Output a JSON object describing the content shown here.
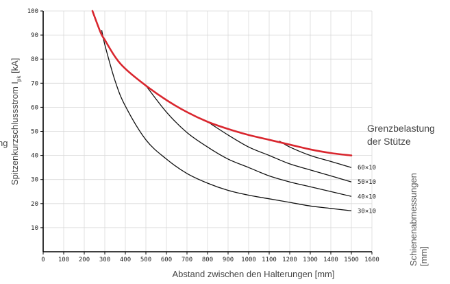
{
  "chart_data": {
    "type": "line",
    "xlabel": "Abstand zwischen den Halterungen [mm]",
    "ylabel_main": "Spitzenkurzschlussstrom I",
    "ylabel_sub": "pk",
    "ylabel_unit": " [kA]",
    "left_cut_label": "ng",
    "limit_label_lines": [
      "Grenzbelastung",
      "der Stütze"
    ],
    "right_label_lines": [
      "Schienenabmessungen",
      "[mm]"
    ],
    "xlim": [
      0,
      1600
    ],
    "ylim": [
      0,
      100
    ],
    "x_ticks": [
      "0",
      "100",
      "200",
      "300",
      "400",
      "500",
      "600",
      "700",
      "800",
      "900",
      "1000",
      "1100",
      "1200",
      "1300",
      "1400",
      "1500",
      "1600"
    ],
    "y_ticks": [
      "10",
      "20",
      "30",
      "40",
      "50",
      "60",
      "70",
      "80",
      "90",
      "100"
    ],
    "grid": true,
    "limit_curve": {
      "color": "#d9262e",
      "x": [
        240,
        280,
        300,
        350,
        400,
        500,
        600,
        700,
        800,
        900,
        1000,
        1100,
        1200,
        1300,
        1400,
        1500
      ],
      "y": [
        100,
        91,
        88,
        81,
        76,
        69,
        63,
        58,
        54,
        51,
        48.5,
        46.5,
        44.5,
        42.5,
        41,
        40
      ]
    },
    "series": [
      {
        "name": "60×10",
        "color": "#111111",
        "x": [
          1150,
          1200,
          1300,
          1400,
          1500
        ],
        "y": [
          46,
          43.5,
          40,
          37.5,
          35
        ]
      },
      {
        "name": "50×10",
        "color": "#111111",
        "x": [
          800,
          900,
          1000,
          1100,
          1200,
          1300,
          1400,
          1500
        ],
        "y": [
          54,
          48.5,
          43.5,
          40,
          36.5,
          34,
          31.5,
          29
        ]
      },
      {
        "name": "40×10",
        "color": "#111111",
        "x": [
          500,
          600,
          700,
          800,
          900,
          1000,
          1100,
          1200,
          1300,
          1400,
          1500
        ],
        "y": [
          69,
          58,
          49.5,
          43.5,
          38.5,
          35,
          31.5,
          29,
          27,
          25,
          23
        ]
      },
      {
        "name": "30×10",
        "color": "#111111",
        "x": [
          285,
          300,
          350,
          400,
          500,
          600,
          700,
          800,
          900,
          1000,
          1100,
          1200,
          1300,
          1400,
          1500
        ],
        "y": [
          92,
          86,
          71,
          60.5,
          46.5,
          38.5,
          32.5,
          28.5,
          25.5,
          23.5,
          22,
          20.5,
          19,
          18,
          17
        ]
      }
    ]
  }
}
